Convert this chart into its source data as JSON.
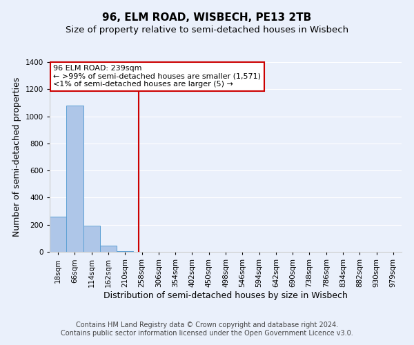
{
  "title": "96, ELM ROAD, WISBECH, PE13 2TB",
  "subtitle": "Size of property relative to semi-detached houses in Wisbech",
  "xlabel": "Distribution of semi-detached houses by size in Wisbech",
  "ylabel": "Number of semi-detached properties",
  "bar_labels": [
    "18sqm",
    "66sqm",
    "114sqm",
    "162sqm",
    "210sqm",
    "258sqm",
    "306sqm",
    "354sqm",
    "402sqm",
    "450sqm",
    "498sqm",
    "546sqm",
    "594sqm",
    "642sqm",
    "690sqm",
    "738sqm",
    "786sqm",
    "834sqm",
    "882sqm",
    "930sqm",
    "979sqm"
  ],
  "bar_values": [
    260,
    1080,
    195,
    45,
    5,
    0,
    0,
    0,
    0,
    0,
    0,
    0,
    0,
    0,
    0,
    0,
    0,
    0,
    0,
    0,
    0
  ],
  "bar_color": "#aec6e8",
  "bar_edge_color": "#5a9fd4",
  "ylim": [
    0,
    1400
  ],
  "yticks": [
    0,
    200,
    400,
    600,
    800,
    1000,
    1200,
    1400
  ],
  "red_line_x": 4.8,
  "annotation_title": "96 ELM ROAD: 239sqm",
  "annotation_line1": "← >99% of semi-detached houses are smaller (1,571)",
  "annotation_line2": "<1% of semi-detached houses are larger (5) →",
  "annotation_box_color": "#ffffff",
  "annotation_border_color": "#cc0000",
  "vline_color": "#cc0000",
  "footer_line1": "Contains HM Land Registry data © Crown copyright and database right 2024.",
  "footer_line2": "Contains public sector information licensed under the Open Government Licence v3.0.",
  "background_color": "#eaf0fb",
  "grid_color": "#ffffff",
  "title_fontsize": 11,
  "subtitle_fontsize": 9.5,
  "axis_label_fontsize": 9,
  "tick_fontsize": 7.5,
  "footer_fontsize": 7
}
